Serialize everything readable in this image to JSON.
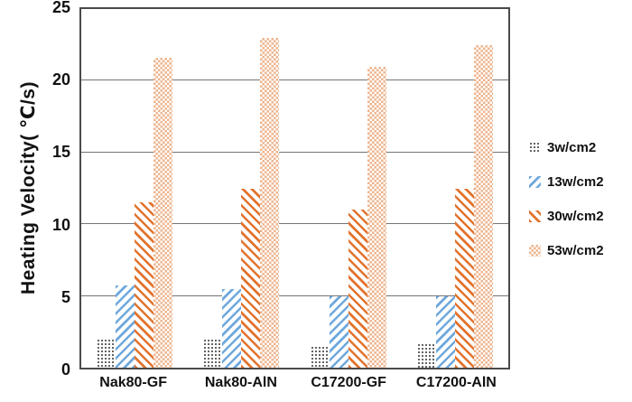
{
  "chart_data": {
    "type": "bar",
    "title": "",
    "xlabel": "",
    "ylabel": "Heating Velocity( ℃/s)",
    "ylim": [
      0,
      25
    ],
    "yticks": [
      0,
      5,
      10,
      15,
      20,
      25
    ],
    "grid": true,
    "legend_position": "right",
    "categories": [
      "Nak80-GF",
      "Nak80-AlN",
      "C17200-GF",
      "C17200-AlN"
    ],
    "series": [
      {
        "name": "3w/cm2",
        "pattern": "dots",
        "color": "#3d3d3d",
        "values": [
          2.0,
          2.0,
          1.5,
          1.7
        ]
      },
      {
        "name": "13w/cm2",
        "pattern": "diag-up",
        "color": "#6fa8dc",
        "values": [
          5.7,
          5.5,
          5.0,
          5.0
        ]
      },
      {
        "name": "30w/cm2",
        "pattern": "diag-down",
        "color": "#e2732d",
        "values": [
          11.5,
          12.5,
          11.0,
          12.5
        ]
      },
      {
        "name": "53w/cm2",
        "pattern": "checker",
        "color": "#eeb48e",
        "values": [
          21.6,
          23.0,
          21.0,
          22.5
        ]
      }
    ],
    "colors": {
      "plot_border": "#4a4a4a",
      "gridline": "#757575",
      "text": "#111111",
      "background": "#ffffff"
    }
  }
}
